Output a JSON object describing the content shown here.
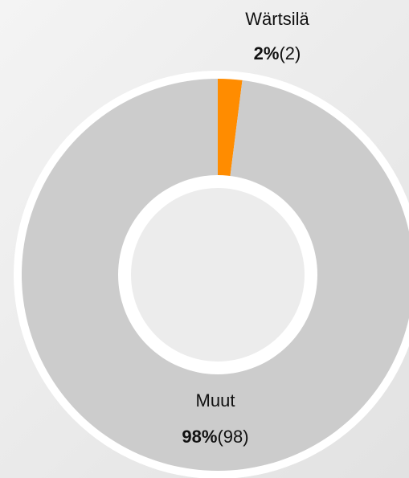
{
  "chart_data": {
    "type": "donut",
    "categories": [
      "Wärtsilä",
      "Muut"
    ],
    "values": [
      2,
      98
    ],
    "value_labels": [
      "2%",
      "98%"
    ],
    "count_labels": [
      "(2)",
      "(98)"
    ],
    "colors": [
      "#ff8c00",
      "#cccccc"
    ]
  }
}
